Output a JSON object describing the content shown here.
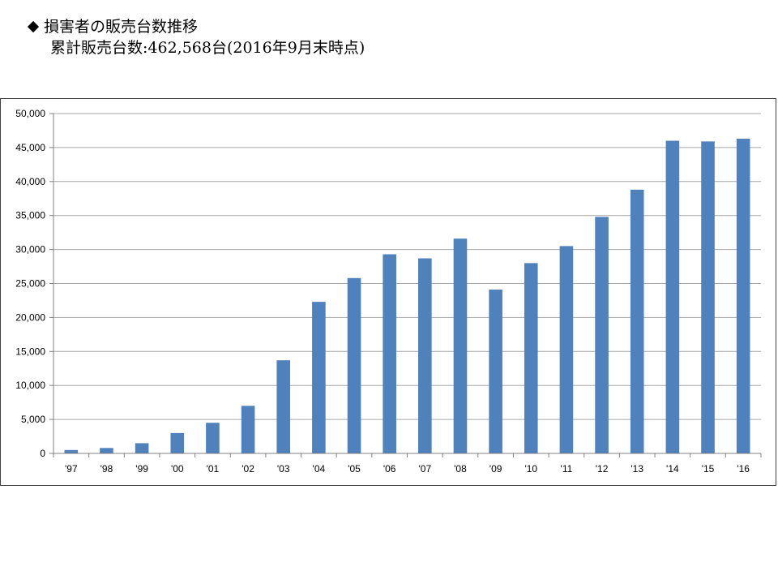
{
  "header": {
    "title": "損害者の販売台数推移",
    "subtitle": "累計販売台数:462,568台(2016年9月末時点)"
  },
  "chart_data": {
    "type": "bar",
    "categories": [
      "'97",
      "'98",
      "'99",
      "'00",
      "'01",
      "'02",
      "'03",
      "'04",
      "'05",
      "'06",
      "'07",
      "'08",
      "'09",
      "'10",
      "'11",
      "'12",
      "'13",
      "'14",
      "'15",
      "'16"
    ],
    "values": [
      500,
      800,
      1500,
      3000,
      4500,
      7000,
      13700,
      22300,
      25800,
      29300,
      28700,
      31600,
      24100,
      28000,
      30500,
      34800,
      38800,
      46000,
      45900,
      46300
    ],
    "ylim": [
      0,
      50000
    ],
    "yticks": [
      0,
      5000,
      10000,
      15000,
      20000,
      25000,
      30000,
      35000,
      40000,
      45000,
      50000
    ],
    "grid": true,
    "bar_color": "#4f81bd",
    "title": "",
    "xlabel": "",
    "ylabel": ""
  }
}
